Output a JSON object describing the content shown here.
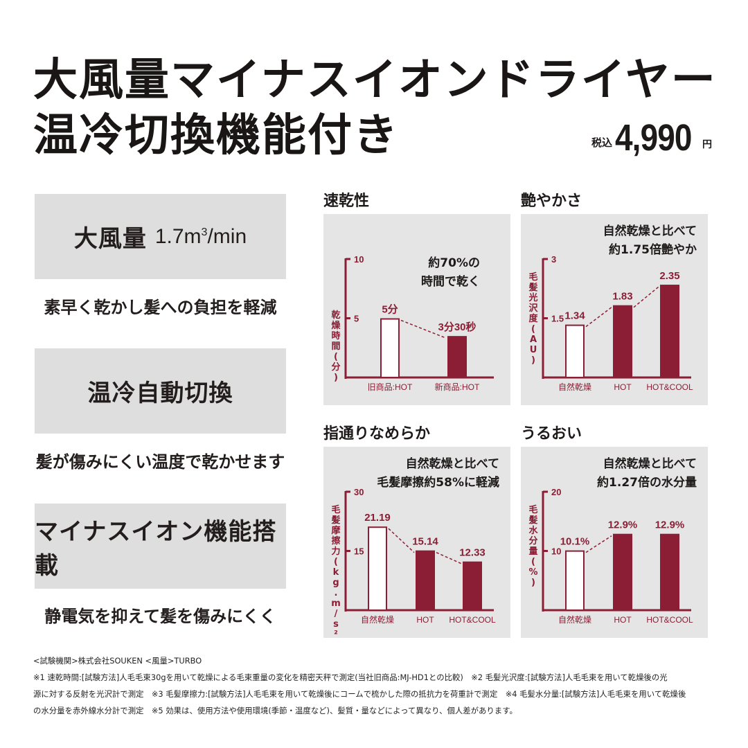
{
  "header": {
    "title_line1": "大風量マイナスイオンドライヤー",
    "title_line2": "温冷切換機能付き",
    "price_tax_label": "税込",
    "price_value": "4,990",
    "price_currency": "円"
  },
  "features": [
    {
      "label": "大風量",
      "spec": "1.7m",
      "spec_sup": "3",
      "spec_suffix": "/min",
      "description": "素早く乾かし髪への負担を軽減"
    },
    {
      "label": "温冷自動切換",
      "description": "髪が傷みにくい温度で乾かせます"
    },
    {
      "label": "マイナスイオン機能搭載",
      "description": "静電気を抑えて髪を傷みにくく"
    }
  ],
  "colors": {
    "accent": "#8b1e34",
    "panel_bg": "#e5e5e5",
    "feature_bg": "#dddedd",
    "text": "#1e1a1a"
  },
  "chart_data": [
    {
      "type": "bar",
      "title": "速乾性",
      "headline": [
        "約70%の",
        "時間で乾く"
      ],
      "ylabel": "乾燥時間(分)",
      "ylim": [
        0,
        10
      ],
      "yticks": [
        5,
        10
      ],
      "categories": [
        "旧商品:HOT",
        "新商品:HOT"
      ],
      "values": [
        5,
        3.5
      ],
      "value_labels": [
        "5分",
        "3分30秒"
      ],
      "bar_styles": [
        "outline",
        "filled"
      ]
    },
    {
      "type": "bar",
      "title": "艶やかさ",
      "headline": [
        "自然乾燥と比べて",
        "約1.75倍艶やか"
      ],
      "ylabel": "毛髪光沢度(AU)",
      "ylim": [
        0,
        3
      ],
      "yticks": [
        1.5,
        3
      ],
      "categories": [
        "自然乾燥",
        "HOT",
        "HOT&COOL"
      ],
      "values": [
        1.34,
        1.83,
        2.35
      ],
      "value_labels": [
        "1.34",
        "1.83",
        "2.35"
      ],
      "bar_styles": [
        "outline",
        "filled",
        "filled"
      ]
    },
    {
      "type": "bar",
      "title": "指通りなめらか",
      "headline": [
        "自然乾燥と比べて",
        "毛髪摩擦約58%に軽減"
      ],
      "ylabel": "毛髪摩擦力(kg.m/s²)",
      "ylim": [
        0,
        30
      ],
      "yticks": [
        15,
        30
      ],
      "categories": [
        "自然乾燥",
        "HOT",
        "HOT&COOL"
      ],
      "values": [
        21.19,
        15.14,
        12.33
      ],
      "value_labels": [
        "21.19",
        "15.14",
        "12.33"
      ],
      "bar_styles": [
        "outline",
        "filled",
        "filled"
      ]
    },
    {
      "type": "bar",
      "title": "うるおい",
      "headline": [
        "自然乾燥と比べて",
        "約1.27倍の水分量"
      ],
      "ylabel": "毛髪水分量(%)",
      "ylim": [
        0,
        20
      ],
      "yticks": [
        10,
        20
      ],
      "categories": [
        "自然乾燥",
        "HOT",
        "HOT&COOL"
      ],
      "values": [
        10.1,
        12.9,
        12.9
      ],
      "value_labels": [
        "10.1%",
        "12.9%",
        "12.9%"
      ],
      "bar_styles": [
        "outline",
        "filled",
        "filled"
      ]
    }
  ],
  "footnotes": [
    "<試験機関>株式会社SOUKEN <風量>TURBO",
    "※1 速乾時間:[試験方法]人毛毛束30gを用いて乾燥による毛束重量の変化を精密天秤で測定(当社旧商品:MJ-HD1との比較)　※2 毛髪光沢度:[試験方法]人毛毛束を用いて乾燥後の光",
    "源に対する反射を光沢計で測定　※3 毛髪摩擦力:[試験方法]人毛毛束を用いて乾燥後にコームで梳かした際の抵抗力を荷重計で測定　※4 毛髪水分量:[試験方法]人毛毛束を用いて乾燥後",
    "の水分量を赤外線水分計で測定　※5 効果は、使用方法や使用環境(季節・温度など)、髪質・量などによって異なり、個人差があります。"
  ]
}
